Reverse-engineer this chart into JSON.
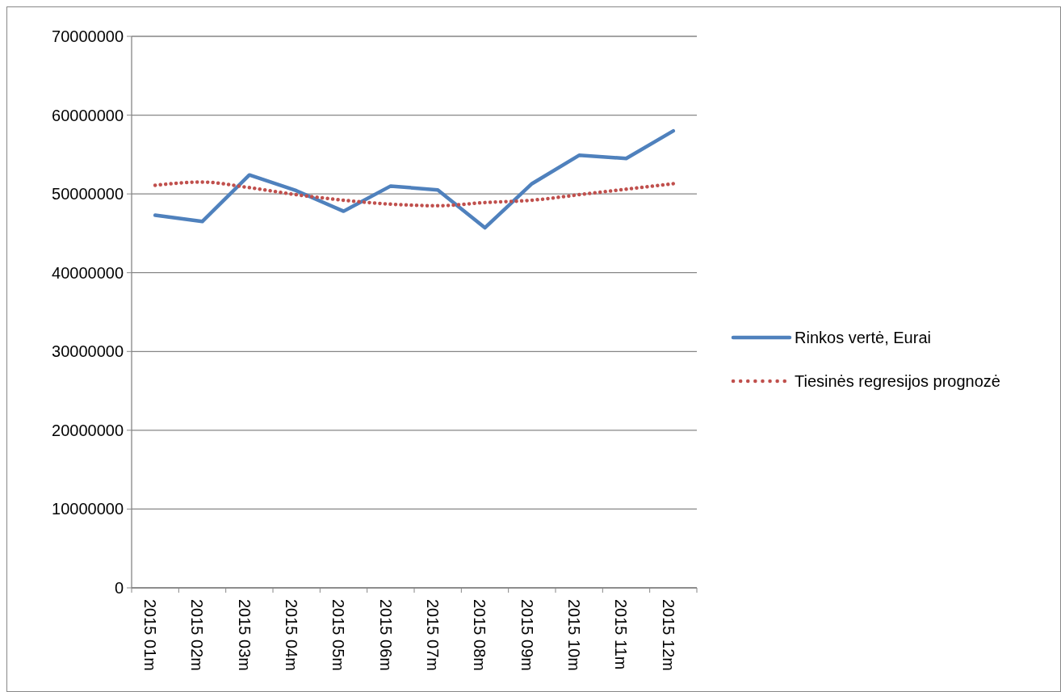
{
  "chart_data": {
    "type": "line",
    "categories": [
      "2015 01m",
      "2015 02m",
      "2015 03m",
      "2015 04m",
      "2015 05m",
      "2015 06m",
      "2015 07m",
      "2015 08m",
      "2015 09m",
      "2015 10m",
      "2015 11m",
      "2015 12m"
    ],
    "series": [
      {
        "name": "Rinkos vertė, Eurai",
        "color": "#4f81bd",
        "line_style": "solid",
        "values": [
          47300000,
          46500000,
          52400000,
          50400000,
          47800000,
          51000000,
          50500000,
          45700000,
          51300000,
          54900000,
          54500000,
          58000000
        ]
      },
      {
        "name": "Tiesinės regresijos prognozė",
        "color": "#c0504d",
        "line_style": "dotted",
        "values": [
          51100000,
          51500000,
          50800000,
          49900000,
          49200000,
          48700000,
          48500000,
          48900000,
          49200000,
          49900000,
          50600000,
          51300000
        ]
      }
    ],
    "ylim": [
      0,
      70000000
    ],
    "yticks": [
      0,
      10000000,
      20000000,
      30000000,
      40000000,
      50000000,
      60000000,
      70000000
    ],
    "grid": "y",
    "legend": "right",
    "marker": "none"
  }
}
